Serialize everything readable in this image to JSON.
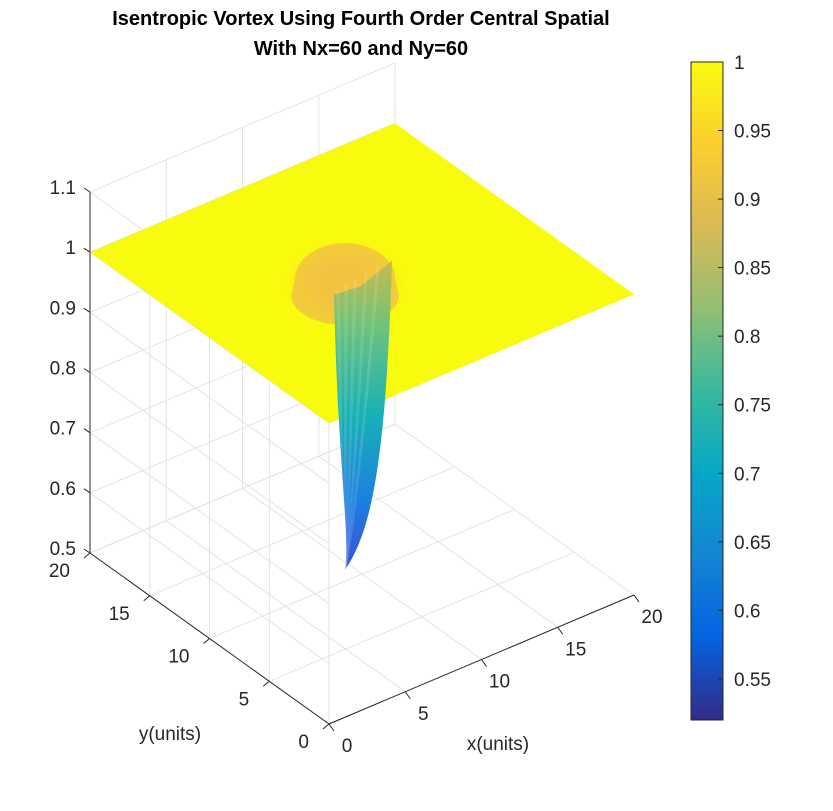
{
  "chart_data": {
    "type": "surface",
    "title": [
      "Isentropic Vortex Using Fourth Order Central Spatial",
      "With Nx=60 and Ny=60"
    ],
    "xlabel": "x(units)",
    "ylabel": "y(units)",
    "zlabel": "",
    "xlim": [
      0,
      20
    ],
    "ylim": [
      0,
      20
    ],
    "zlim": [
      0.5,
      1.1
    ],
    "x_ticks": [
      "0",
      "5",
      "10",
      "15",
      "20"
    ],
    "y_ticks": [
      "0",
      "5",
      "10",
      "15",
      "20"
    ],
    "z_ticks": [
      "0.5",
      "0.6",
      "0.7",
      "0.8",
      "0.9",
      "1",
      "1.1"
    ],
    "grid": "on",
    "colormap": "parula",
    "surface": {
      "description": "flat plane at 1.0 with a single vortex well",
      "baseline": 1.0,
      "well_center": [
        8.5,
        9.5
      ],
      "well_minimum": 0.53
    },
    "colorbar": {
      "location": "right",
      "range": [
        0.52,
        1.0
      ],
      "ticks": [
        "0.55",
        "0.6",
        "0.65",
        "0.7",
        "0.75",
        "0.8",
        "0.85",
        "0.9",
        "0.95",
        "1"
      ],
      "colors": [
        "#352a87",
        "#0363e1",
        "#1485d4",
        "#06a7c6",
        "#38b99e",
        "#92bf73",
        "#d9ba56",
        "#fcce2e",
        "#f9fb0e"
      ]
    }
  }
}
